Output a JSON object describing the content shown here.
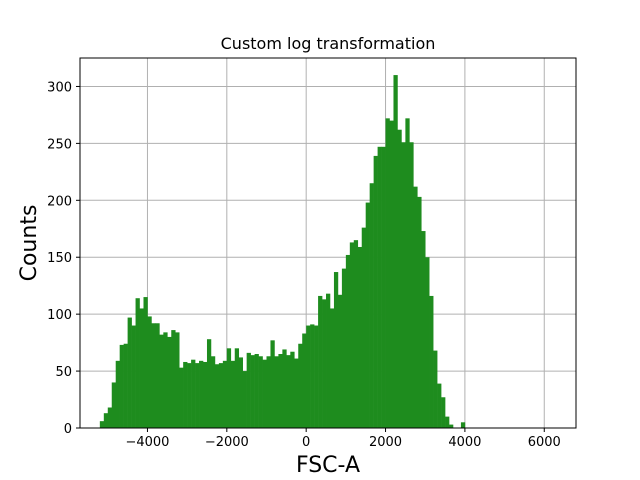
{
  "chart_data": {
    "type": "bar",
    "title": "Custom log transformation",
    "xlabel": "FSC-A",
    "ylabel": "Counts",
    "xlim": [
      -5700,
      6800
    ],
    "ylim": [
      0,
      325
    ],
    "grid": true,
    "bar_color": "#1e8c1e",
    "bin_start": -5200,
    "bin_width": 100,
    "x_ticks": [
      -4000,
      -2000,
      0,
      2000,
      4000,
      6000
    ],
    "x_tick_labels": [
      "−4000",
      "−2000",
      "0",
      "2000",
      "4000",
      "6000"
    ],
    "y_ticks": [
      0,
      50,
      100,
      150,
      200,
      250,
      300
    ],
    "y_tick_labels": [
      "0",
      "50",
      "100",
      "150",
      "200",
      "250",
      "300"
    ],
    "values": [
      6,
      13,
      18,
      40,
      59,
      73,
      74,
      97,
      90,
      114,
      105,
      115,
      98,
      92,
      92,
      82,
      84,
      80,
      86,
      84,
      53,
      58,
      57,
      60,
      57,
      59,
      58,
      78,
      63,
      56,
      57,
      59,
      70,
      59,
      70,
      62,
      50,
      66,
      64,
      65,
      63,
      60,
      63,
      77,
      63,
      65,
      69,
      64,
      67,
      61,
      74,
      83,
      90,
      91,
      90,
      116,
      113,
      118,
      105,
      137,
      117,
      140,
      152,
      163,
      165,
      159,
      176,
      198,
      215,
      239,
      247,
      247,
      272,
      270,
      310,
      262,
      251,
      272,
      251,
      212,
      203,
      173,
      150,
      116,
      68,
      39,
      27,
      10,
      3,
      0,
      0,
      5,
      0,
      0
    ]
  }
}
